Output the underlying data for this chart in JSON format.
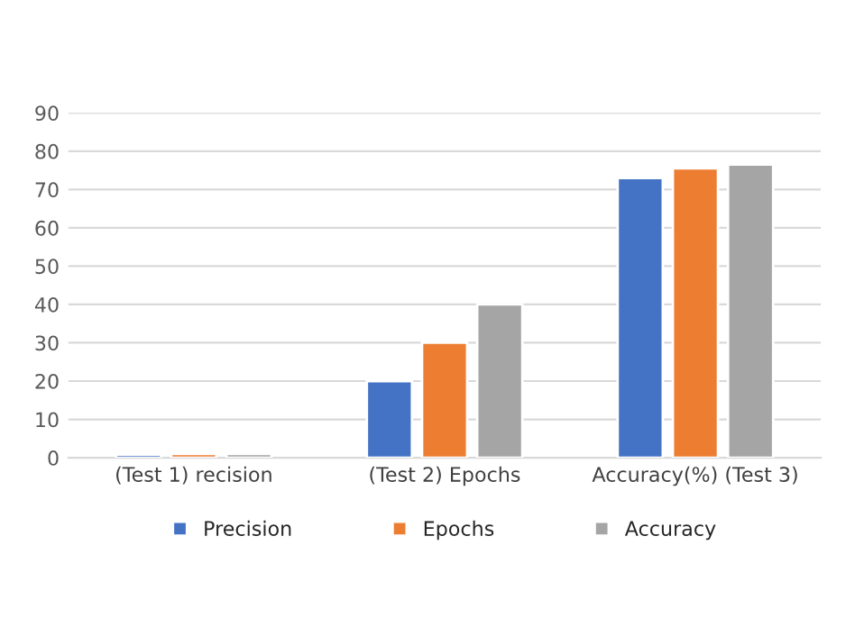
{
  "chart_data": {
    "type": "bar",
    "categories": [
      "(Test 1) recision",
      "(Test 2) Epochs",
      "Accuracy(%) (Test 3)"
    ],
    "series": [
      {
        "name": "Precision",
        "color": "#4472c4",
        "values": [
          0.8,
          20,
          73
        ]
      },
      {
        "name": "Epochs",
        "color": "#ed7d31",
        "values": [
          1,
          30,
          75.5
        ]
      },
      {
        "name": "Accuracy",
        "color": "#a5a5a5",
        "values": [
          1,
          40,
          76.5
        ]
      }
    ],
    "ylim": [
      0,
      90
    ],
    "yticks": [
      0,
      10,
      20,
      30,
      40,
      50,
      60,
      70,
      80,
      90
    ],
    "grid": "y",
    "legend": "bottom"
  }
}
